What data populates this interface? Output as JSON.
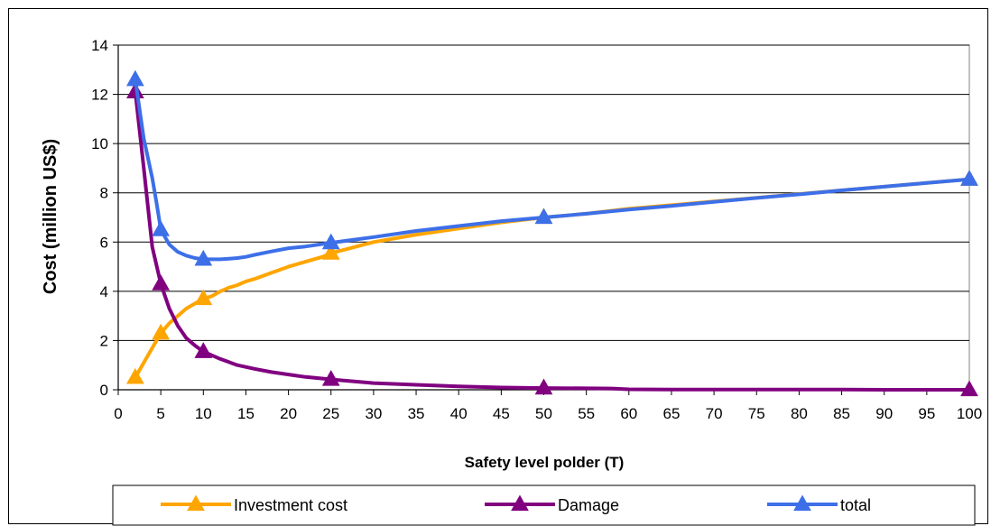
{
  "chart_data": {
    "type": "line",
    "xlabel": "Safety level polder (T)",
    "ylabel": "Cost (million US$)",
    "xlim": [
      0,
      100
    ],
    "ylim": [
      0,
      14
    ],
    "xticks": [
      0,
      5,
      10,
      15,
      20,
      25,
      30,
      35,
      40,
      45,
      50,
      55,
      60,
      65,
      70,
      75,
      80,
      85,
      90,
      95,
      100
    ],
    "yticks": [
      0,
      2,
      4,
      6,
      8,
      10,
      12,
      14
    ],
    "grid": "horizontal",
    "legend_position": "bottom",
    "series": [
      {
        "name": "Investment cost",
        "color": "#FFA500",
        "x": [
          2,
          3,
          4,
          5,
          6,
          7,
          8,
          9,
          10,
          11,
          12,
          13,
          14,
          15,
          16,
          18,
          20,
          22,
          24,
          25,
          30,
          35,
          40,
          45,
          50,
          55,
          60,
          65,
          70,
          75,
          80,
          85,
          90,
          95,
          100
        ],
        "y": [
          0.5,
          1.1,
          1.7,
          2.3,
          2.7,
          3.0,
          3.3,
          3.5,
          3.7,
          3.8,
          4.0,
          4.15,
          4.25,
          4.4,
          4.5,
          4.75,
          5.0,
          5.2,
          5.4,
          5.55,
          6.0,
          6.3,
          6.55,
          6.8,
          7.0,
          7.15,
          7.35,
          7.5,
          7.65,
          7.8,
          7.95,
          8.1,
          8.25,
          8.4,
          8.55
        ],
        "markers_at": [
          2,
          5,
          10,
          25,
          50,
          100
        ]
      },
      {
        "name": "Damage",
        "color": "#800080",
        "x": [
          2,
          3,
          4,
          5,
          6,
          7,
          8,
          9,
          10,
          12,
          14,
          16,
          18,
          20,
          22,
          25,
          30,
          35,
          40,
          45,
          50,
          55,
          58,
          60,
          65,
          70,
          75,
          80,
          85,
          90,
          95,
          100
        ],
        "y": [
          12.1,
          9.0,
          5.8,
          4.3,
          3.3,
          2.6,
          2.1,
          1.8,
          1.55,
          1.25,
          1.0,
          0.85,
          0.72,
          0.62,
          0.52,
          0.42,
          0.27,
          0.2,
          0.14,
          0.09,
          0.07,
          0.06,
          0.05,
          0.02,
          0.01,
          0.01,
          0.01,
          0.01,
          0.01,
          0.0,
          0.0,
          0.0
        ],
        "markers_at": [
          2,
          5,
          10,
          25,
          50,
          100
        ]
      },
      {
        "name": "total",
        "color": "#3D6FE8",
        "x": [
          2,
          3,
          4,
          4.5,
          5,
          6,
          7,
          8,
          9,
          10,
          11,
          12,
          13,
          14,
          15,
          16,
          18,
          20,
          22,
          25,
          30,
          35,
          40,
          45,
          50,
          55,
          60,
          65,
          70,
          75,
          80,
          85,
          90,
          95,
          100
        ],
        "y": [
          12.6,
          10.2,
          8.6,
          7.6,
          6.5,
          5.9,
          5.6,
          5.45,
          5.35,
          5.3,
          5.3,
          5.3,
          5.32,
          5.35,
          5.4,
          5.48,
          5.62,
          5.75,
          5.82,
          5.97,
          6.2,
          6.45,
          6.65,
          6.85,
          7.0,
          7.15,
          7.32,
          7.47,
          7.63,
          7.79,
          7.94,
          8.1,
          8.25,
          8.4,
          8.55
        ],
        "markers_at": [
          2,
          5,
          10,
          25,
          50,
          100
        ]
      }
    ]
  }
}
